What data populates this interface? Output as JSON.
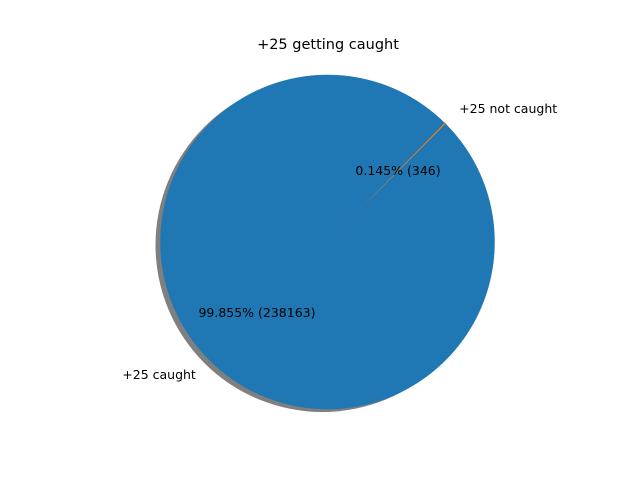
{
  "chart_data": {
    "type": "pie",
    "title": "+25 getting caught",
    "slices": [
      {
        "label": "+25 caught",
        "value": 238163,
        "percent_label": "99.855%  (238163)",
        "color": "#1f77b4"
      },
      {
        "label": "+25 not caught",
        "value": 346,
        "percent_label": "0.145%  (346)",
        "color": "#ff7f0e"
      }
    ],
    "start_angle_deg": 45,
    "shadow": true,
    "shadow_color": "#7f7f7f"
  }
}
